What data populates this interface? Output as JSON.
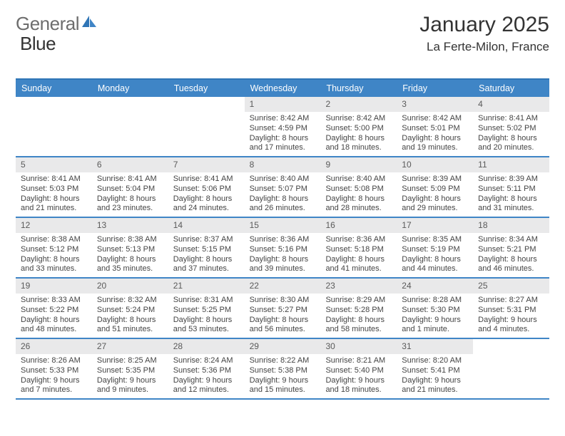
{
  "brand": {
    "word1": "General",
    "word2": "Blue"
  },
  "colors": {
    "accent": "#3f85c6",
    "accent_dark": "#2f75b6",
    "daynum_bg": "#e9e9ea",
    "text": "#333333",
    "logo_gray": "#6d6d6d"
  },
  "header": {
    "month_title": "January 2025",
    "location": "La Ferte-Milon, France"
  },
  "day_names": [
    "Sunday",
    "Monday",
    "Tuesday",
    "Wednesday",
    "Thursday",
    "Friday",
    "Saturday"
  ],
  "layout": {
    "first_weekday_index": 3,
    "days_in_month": 31
  },
  "days": {
    "1": {
      "sunrise": "8:42 AM",
      "sunset": "4:59 PM",
      "daylight": "8 hours and 17 minutes."
    },
    "2": {
      "sunrise": "8:42 AM",
      "sunset": "5:00 PM",
      "daylight": "8 hours and 18 minutes."
    },
    "3": {
      "sunrise": "8:42 AM",
      "sunset": "5:01 PM",
      "daylight": "8 hours and 19 minutes."
    },
    "4": {
      "sunrise": "8:41 AM",
      "sunset": "5:02 PM",
      "daylight": "8 hours and 20 minutes."
    },
    "5": {
      "sunrise": "8:41 AM",
      "sunset": "5:03 PM",
      "daylight": "8 hours and 21 minutes."
    },
    "6": {
      "sunrise": "8:41 AM",
      "sunset": "5:04 PM",
      "daylight": "8 hours and 23 minutes."
    },
    "7": {
      "sunrise": "8:41 AM",
      "sunset": "5:06 PM",
      "daylight": "8 hours and 24 minutes."
    },
    "8": {
      "sunrise": "8:40 AM",
      "sunset": "5:07 PM",
      "daylight": "8 hours and 26 minutes."
    },
    "9": {
      "sunrise": "8:40 AM",
      "sunset": "5:08 PM",
      "daylight": "8 hours and 28 minutes."
    },
    "10": {
      "sunrise": "8:39 AM",
      "sunset": "5:09 PM",
      "daylight": "8 hours and 29 minutes."
    },
    "11": {
      "sunrise": "8:39 AM",
      "sunset": "5:11 PM",
      "daylight": "8 hours and 31 minutes."
    },
    "12": {
      "sunrise": "8:38 AM",
      "sunset": "5:12 PM",
      "daylight": "8 hours and 33 minutes."
    },
    "13": {
      "sunrise": "8:38 AM",
      "sunset": "5:13 PM",
      "daylight": "8 hours and 35 minutes."
    },
    "14": {
      "sunrise": "8:37 AM",
      "sunset": "5:15 PM",
      "daylight": "8 hours and 37 minutes."
    },
    "15": {
      "sunrise": "8:36 AM",
      "sunset": "5:16 PM",
      "daylight": "8 hours and 39 minutes."
    },
    "16": {
      "sunrise": "8:36 AM",
      "sunset": "5:18 PM",
      "daylight": "8 hours and 41 minutes."
    },
    "17": {
      "sunrise": "8:35 AM",
      "sunset": "5:19 PM",
      "daylight": "8 hours and 44 minutes."
    },
    "18": {
      "sunrise": "8:34 AM",
      "sunset": "5:21 PM",
      "daylight": "8 hours and 46 minutes."
    },
    "19": {
      "sunrise": "8:33 AM",
      "sunset": "5:22 PM",
      "daylight": "8 hours and 48 minutes."
    },
    "20": {
      "sunrise": "8:32 AM",
      "sunset": "5:24 PM",
      "daylight": "8 hours and 51 minutes."
    },
    "21": {
      "sunrise": "8:31 AM",
      "sunset": "5:25 PM",
      "daylight": "8 hours and 53 minutes."
    },
    "22": {
      "sunrise": "8:30 AM",
      "sunset": "5:27 PM",
      "daylight": "8 hours and 56 minutes."
    },
    "23": {
      "sunrise": "8:29 AM",
      "sunset": "5:28 PM",
      "daylight": "8 hours and 58 minutes."
    },
    "24": {
      "sunrise": "8:28 AM",
      "sunset": "5:30 PM",
      "daylight": "9 hours and 1 minute."
    },
    "25": {
      "sunrise": "8:27 AM",
      "sunset": "5:31 PM",
      "daylight": "9 hours and 4 minutes."
    },
    "26": {
      "sunrise": "8:26 AM",
      "sunset": "5:33 PM",
      "daylight": "9 hours and 7 minutes."
    },
    "27": {
      "sunrise": "8:25 AM",
      "sunset": "5:35 PM",
      "daylight": "9 hours and 9 minutes."
    },
    "28": {
      "sunrise": "8:24 AM",
      "sunset": "5:36 PM",
      "daylight": "9 hours and 12 minutes."
    },
    "29": {
      "sunrise": "8:22 AM",
      "sunset": "5:38 PM",
      "daylight": "9 hours and 15 minutes."
    },
    "30": {
      "sunrise": "8:21 AM",
      "sunset": "5:40 PM",
      "daylight": "9 hours and 18 minutes."
    },
    "31": {
      "sunrise": "8:20 AM",
      "sunset": "5:41 PM",
      "daylight": "9 hours and 21 minutes."
    }
  },
  "labels": {
    "sunrise": "Sunrise: ",
    "sunset": "Sunset: ",
    "daylight": "Daylight: "
  }
}
